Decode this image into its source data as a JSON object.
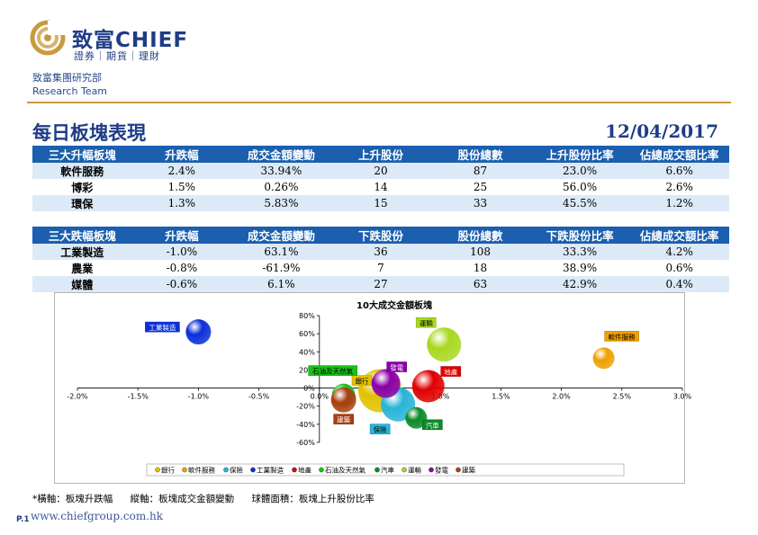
{
  "brand": {
    "name": "致富CHIEF",
    "tagline": "證券｜期貨｜理財",
    "department": "致富集團研究部",
    "team": "Research Team",
    "color": "#1f3d86",
    "accent": "#c89a3c"
  },
  "report": {
    "title": "每日板塊表現",
    "date": "12/04/2017"
  },
  "top_gainers": {
    "headers": [
      "三大升幅板塊",
      "升跌幅",
      "成交金額變動",
      "上升股份",
      "股份總數",
      "上升股份比率",
      "佔總成交額比率"
    ],
    "rows": [
      [
        "軟件服務",
        "2.4%",
        "33.94%",
        "20",
        "87",
        "23.0%",
        "6.6%"
      ],
      [
        "博彩",
        "1.5%",
        "0.26%",
        "14",
        "25",
        "56.0%",
        "2.6%"
      ],
      [
        "環保",
        "1.3%",
        "5.83%",
        "15",
        "33",
        "45.5%",
        "1.2%"
      ]
    ]
  },
  "top_losers": {
    "headers": [
      "三大跌幅板塊",
      "升跌幅",
      "成交金額變動",
      "下跌股份",
      "股份總數",
      "下跌股份比率",
      "佔總成交額比率"
    ],
    "rows": [
      [
        "工業製造",
        "-1.0%",
        "63.1%",
        "36",
        "108",
        "33.3%",
        "4.2%"
      ],
      [
        "農業",
        "-0.8%",
        "-61.9%",
        "7",
        "18",
        "38.9%",
        "0.6%"
      ],
      [
        "媒體",
        "-0.6%",
        "6.1%",
        "27",
        "63",
        "42.9%",
        "0.4%"
      ]
    ]
  },
  "chart_data": {
    "type": "scatter",
    "title": "10大成交金額板塊",
    "xlim": [
      -2.0,
      3.0
    ],
    "ylim": [
      -60,
      80
    ],
    "x_ticks": [
      "-2.0%",
      "-1.5%",
      "-1.0%",
      "-0.5%",
      "0.0%",
      "0.5%",
      "1.0%",
      "1.5%",
      "2.0%",
      "2.5%",
      "3.0%"
    ],
    "y_ticks": [
      "80%",
      "60%",
      "40%",
      "20%",
      "0%",
      "-20%",
      "-40%",
      "-60%"
    ],
    "legend_position": "bottom",
    "series": [
      {
        "name": "銀行",
        "x": 0.5,
        "y": -3,
        "size": 24,
        "color": "#e0c200"
      },
      {
        "name": "軟件服務",
        "x": 2.35,
        "y": 33,
        "size": 12,
        "color": "#f0a000"
      },
      {
        "name": "保險",
        "x": 0.65,
        "y": -18,
        "size": 19,
        "color": "#28b4d8"
      },
      {
        "name": "工業製造",
        "x": -1.0,
        "y": 62,
        "size": 14,
        "color": "#0a2fd8"
      },
      {
        "name": "地產",
        "x": 0.9,
        "y": 2,
        "size": 18,
        "color": "#e00000"
      },
      {
        "name": "石油及天然氣",
        "x": 0.2,
        "y": -8,
        "size": 13,
        "color": "#18c018"
      },
      {
        "name": "汽車",
        "x": 0.8,
        "y": -33,
        "size": 12,
        "color": "#0a8a28"
      },
      {
        "name": "運輸",
        "x": 1.03,
        "y": 48,
        "size": 19,
        "color": "#a8d820"
      },
      {
        "name": "發電",
        "x": 0.55,
        "y": 5,
        "size": 16,
        "color": "#8a00a8"
      },
      {
        "name": "建築",
        "x": 0.2,
        "y": -13,
        "size": 14,
        "color": "#a84010"
      }
    ]
  },
  "footnote": {
    "x_axis": "*橫軸：板塊升跌幅",
    "y_axis": "縱軸：板塊成交金額變動",
    "bubble": "球體面積：板塊上升股份比率"
  },
  "page": "P.1",
  "website": "www.chiefgroup.com.hk"
}
